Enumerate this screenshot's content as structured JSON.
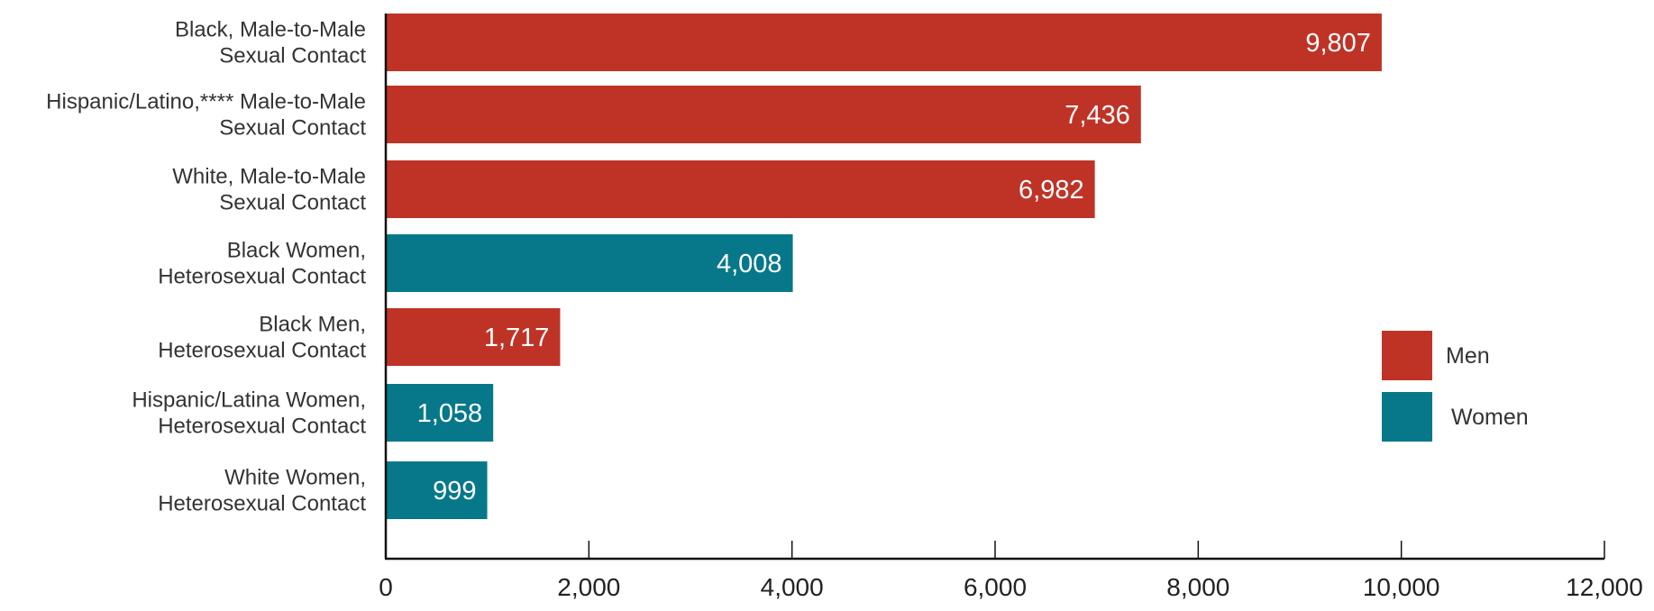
{
  "chart_data": {
    "type": "bar",
    "orientation": "horizontal",
    "title": "",
    "xlabel": "",
    "ylabel": "",
    "xlim": [
      0,
      12000
    ],
    "xticks": [
      0,
      2000,
      4000,
      6000,
      8000,
      10000,
      12000
    ],
    "xtick_labels": [
      "0",
      "2,000",
      "4,000",
      "6,000",
      "8,000",
      "10,000",
      "12,000"
    ],
    "grid": false,
    "legend_position": "right",
    "colors": {
      "Men": "#bf3327",
      "Women": "#06788a"
    },
    "legend": [
      {
        "name": "Men",
        "color": "#bf3327"
      },
      {
        "name": "Women",
        "color": "#06788a"
      }
    ],
    "categories": [
      {
        "lines": [
          "Black, Male-to-Male",
          "Sexual Contact"
        ],
        "value": 9807,
        "value_label": "9,807",
        "group": "Men"
      },
      {
        "lines": [
          "Hispanic/Latino,**** Male-to-Male",
          "Sexual Contact"
        ],
        "value": 7436,
        "value_label": "7,436",
        "group": "Men"
      },
      {
        "lines": [
          "White, Male-to-Male",
          "Sexual Contact"
        ],
        "value": 6982,
        "value_label": "6,982",
        "group": "Men"
      },
      {
        "lines": [
          "Black Women,",
          "Heterosexual Contact"
        ],
        "value": 4008,
        "value_label": "4,008",
        "group": "Women"
      },
      {
        "lines": [
          "Black Men,",
          "Heterosexual Contact"
        ],
        "value": 1717,
        "value_label": "1,717",
        "group": "Men"
      },
      {
        "lines": [
          "Hispanic/Latina Women,",
          "Heterosexual Contact"
        ],
        "value": 1058,
        "value_label": "1,058",
        "group": "Women"
      },
      {
        "lines": [
          "White Women,",
          "Heterosexual Contact"
        ],
        "value": 999,
        "value_label": "999",
        "group": "Women"
      }
    ]
  }
}
